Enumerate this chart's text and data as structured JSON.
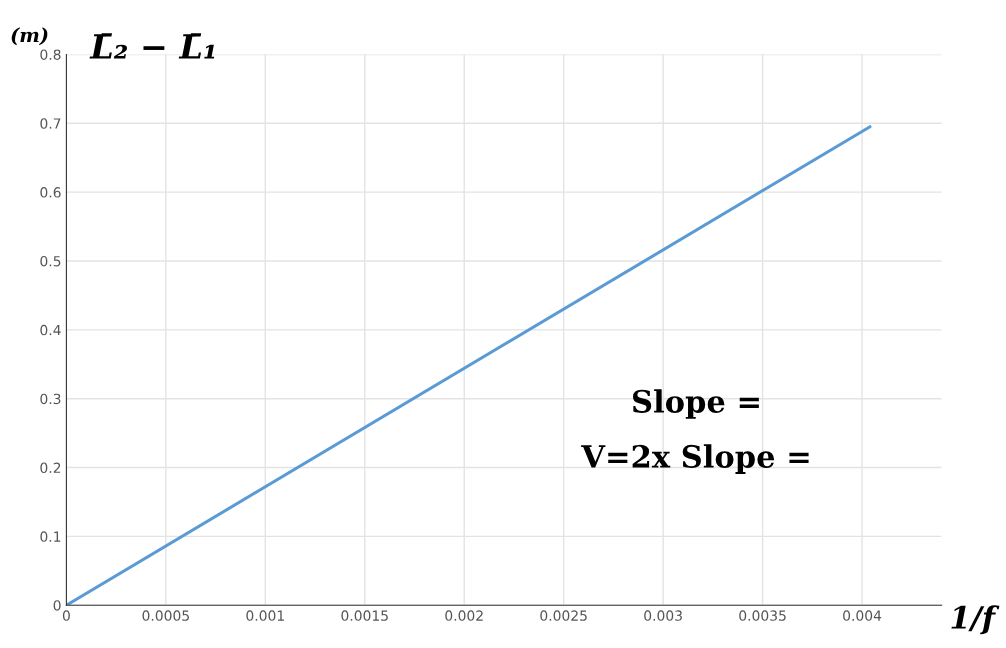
{
  "chart_data": {
    "type": "line",
    "xlabel": "1/f",
    "ylabel": "L̄₂ − L̄₁",
    "x": [
      0,
      0.00404
    ],
    "series": [
      {
        "color": "#5b9bd5",
        "values": [
          0,
          0.695
        ]
      }
    ],
    "xlim": [
      0,
      0.0044
    ],
    "ylim": [
      0,
      0.8
    ],
    "xticks": [
      0,
      0.0005,
      0.001,
      0.0015,
      0.002,
      0.0025,
      0.003,
      0.0035,
      0.004
    ],
    "yticks": [
      0,
      0.1,
      0.2,
      0.3,
      0.4,
      0.5,
      0.6,
      0.7,
      0.8
    ],
    "grid": true,
    "marker": "none",
    "line_style": "solid",
    "annotations": [
      "(m)",
      "Slope =",
      "V=2x Slope ="
    ]
  }
}
